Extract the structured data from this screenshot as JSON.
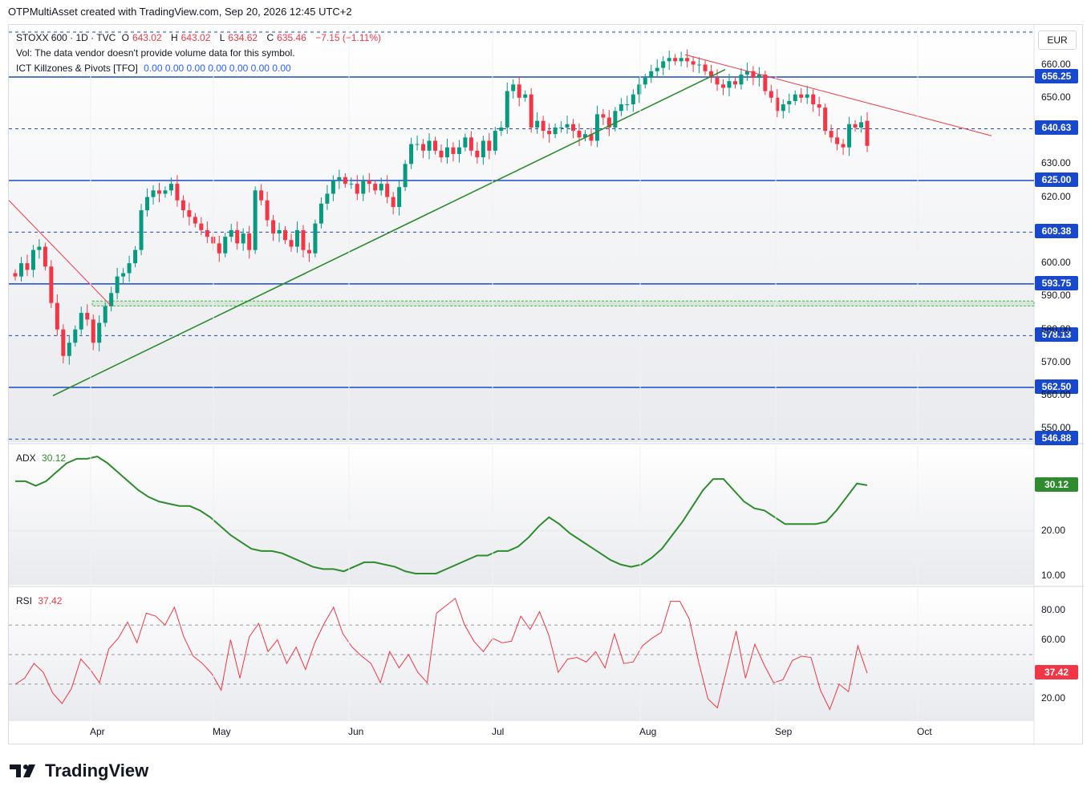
{
  "header": {
    "caption": "OTPMultiAsset created with TradingView.com, Sep 20, 2026 12:45 UTC+2"
  },
  "symbol": {
    "name": "STOXX 600 · 1D · TVC",
    "open_label": "O",
    "open": "643.02",
    "high_label": "H",
    "high": "643.02",
    "low_label": "L",
    "low": "634.62",
    "close_label": "C",
    "close": "635.46",
    "change": "−7.15 (−1.11%)"
  },
  "vol_notice": "Vol: The data vendor doesn't provide volume data for this symbol.",
  "indicator": {
    "name": "ICT Killzones & Pivots [TFO]",
    "values": [
      "0.00",
      "0.00",
      "0.00",
      "0.00",
      "0.00",
      "0.00",
      "0.00"
    ]
  },
  "currency": "EUR",
  "colors": {
    "up": "#089981",
    "down": "#f23645",
    "level": "#1848cc",
    "trend_up": "#2e8b2e",
    "trend_down": "#f23645",
    "adx": "#2e8b2e",
    "rsi": "#f23645"
  },
  "chart_data": [
    {
      "type": "candlestick",
      "title": "STOXX 600 · 1D · TVC",
      "yaxis_ticks": [
        "660.00",
        "650.00",
        "640.00",
        "630.00",
        "620.00",
        "600.00",
        "590.00",
        "580.00",
        "570.00",
        "560.00",
        "550.00"
      ],
      "x_ticks": [
        "Apr",
        "May",
        "Jun",
        "Jul",
        "Aug",
        "Sep",
        "Oct"
      ],
      "ylim": [
        546,
        672
      ],
      "levels": [
        {
          "value": 656.25,
          "label": "656.25",
          "style": "solid"
        },
        {
          "value": 640.63,
          "label": "640.63",
          "style": "dashed"
        },
        {
          "value": 625.0,
          "label": "625.00",
          "style": "solid"
        },
        {
          "value": 609.38,
          "label": "609.38",
          "style": "dashed"
        },
        {
          "value": 593.75,
          "label": "593.75",
          "style": "solid"
        },
        {
          "value": 578.13,
          "label": "578.13",
          "style": "dashed"
        },
        {
          "value": 562.5,
          "label": "562.50",
          "style": "solid"
        },
        {
          "value": 546.88,
          "label": "546.88",
          "style": "dashed"
        }
      ],
      "closes": [
        596,
        600,
        598,
        604,
        605,
        599,
        588,
        580,
        572,
        576,
        580,
        585,
        583,
        576,
        582,
        587,
        591,
        596,
        597,
        600,
        604,
        616,
        620,
        622,
        621,
        622,
        624,
        619,
        616,
        614,
        612,
        610,
        608,
        606,
        603,
        608,
        610,
        606,
        609,
        604,
        622,
        619,
        613,
        609,
        610,
        607,
        605,
        610,
        604,
        603,
        612,
        618,
        621,
        625,
        626,
        624,
        624,
        621,
        625,
        624,
        622,
        624,
        620,
        617,
        623,
        630,
        636,
        636,
        634,
        637,
        634,
        632,
        635,
        633,
        635,
        638,
        634,
        632,
        637,
        634,
        640,
        641,
        652,
        654,
        650,
        651,
        641,
        643,
        640,
        639,
        641,
        641,
        642,
        640,
        638,
        639,
        637,
        645,
        644,
        641,
        646,
        648,
        648,
        651,
        654,
        656,
        658,
        659,
        661,
        662,
        661,
        662,
        661,
        660,
        660,
        658,
        656,
        654,
        653,
        655,
        654,
        657,
        658,
        656,
        657,
        652,
        650,
        646,
        648,
        649,
        651,
        650,
        651,
        648,
        647,
        640,
        638,
        636,
        635,
        642,
        641,
        642.6,
        635.46
      ]
    },
    {
      "type": "line",
      "title": "ADX",
      "value_label": "30.12",
      "yaxis_ticks": [
        "20.00",
        "10.00"
      ],
      "ylim": [
        8,
        39
      ],
      "values": [
        31,
        31,
        30,
        31,
        33,
        35,
        36,
        36,
        36.5,
        35,
        33,
        31,
        29,
        27.5,
        26.5,
        26,
        25.5,
        25.5,
        24.5,
        23,
        21,
        19,
        17.5,
        16,
        15.5,
        15.5,
        15,
        14,
        13,
        12,
        11.5,
        11.5,
        11,
        12,
        13,
        13,
        12.5,
        12,
        11,
        10.5,
        10.5,
        10.5,
        11.5,
        12.5,
        13.5,
        14.5,
        14.5,
        15.5,
        15.5,
        16.5,
        18.5,
        21,
        23,
        21.5,
        19.5,
        18,
        16.5,
        15,
        13.5,
        12.5,
        12,
        12.5,
        14,
        16,
        19,
        22,
        25.5,
        29,
        31.5,
        31.5,
        29,
        26.5,
        25,
        24.5,
        23,
        21.5,
        21.5,
        21.5,
        21.5,
        22,
        24.5,
        27.5,
        30.5,
        30.12
      ]
    },
    {
      "type": "line",
      "title": "RSI",
      "value_label": "37.42",
      "yaxis_ticks": [
        "80.00",
        "60.00",
        "20.00"
      ],
      "ylim": [
        5,
        95
      ],
      "values": [
        30,
        34,
        44,
        38,
        24,
        17,
        27,
        47,
        40,
        31,
        54,
        61,
        72,
        58,
        78,
        76,
        70,
        82,
        62,
        49,
        44,
        37,
        26,
        60,
        34,
        62,
        71,
        52,
        60,
        44,
        55,
        40,
        58,
        71,
        82,
        64,
        55,
        49,
        44,
        31,
        52,
        41,
        50,
        38,
        31,
        78,
        83,
        88,
        70,
        59,
        52,
        61,
        58,
        59,
        76,
        67,
        79,
        63,
        38,
        47,
        48,
        45,
        52,
        41,
        64,
        44,
        45,
        56,
        61,
        65,
        86,
        86,
        74,
        45,
        20,
        14,
        40,
        66,
        34,
        57,
        43,
        31,
        33,
        46,
        49,
        48,
        26,
        13,
        30,
        25,
        56,
        37.42
      ],
      "guides": [
        70,
        50,
        30
      ]
    }
  ]
}
